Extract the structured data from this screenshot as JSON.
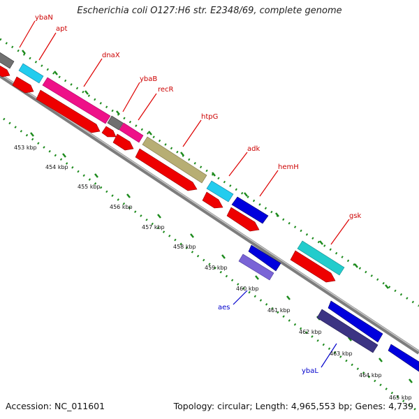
{
  "title": "Escherichia coli O127:H6 str. E2348/69, complete genome",
  "footer": {
    "accession": "Accession: NC_011601",
    "topology": "Topology: circular; Length: 4,965,553 bp; Genes: 4,739"
  },
  "colors": {
    "cds_forward": "#ff0000",
    "cds_reverse": "#0000dd",
    "backbone": "#8a8a8a",
    "tick_marks": "#1c8a1c",
    "label_forward": "#cc0000",
    "label_reverse": "#0000cc"
  },
  "kbp_labels": [
    "453 kbp",
    "454 kbp",
    "455 kbp",
    "456 kbp",
    "457 kbp",
    "458 kbp",
    "459 kbp",
    "460 kbp",
    "461 kbp",
    "462 kbp",
    "463 kbp",
    "464 kbp",
    "465 kbp"
  ],
  "gene_labels": [
    {
      "name": "ybaN",
      "strand": "forward"
    },
    {
      "name": "apt",
      "strand": "forward"
    },
    {
      "name": "dnaX",
      "strand": "forward"
    },
    {
      "name": "ybaB",
      "strand": "forward"
    },
    {
      "name": "recR",
      "strand": "forward"
    },
    {
      "name": "htpG",
      "strand": "forward"
    },
    {
      "name": "adk",
      "strand": "forward"
    },
    {
      "name": "hemH",
      "strand": "forward"
    },
    {
      "name": "gsk",
      "strand": "forward"
    },
    {
      "name": "aes",
      "strand": "reverse"
    },
    {
      "name": "ybaL",
      "strand": "reverse"
    }
  ]
}
